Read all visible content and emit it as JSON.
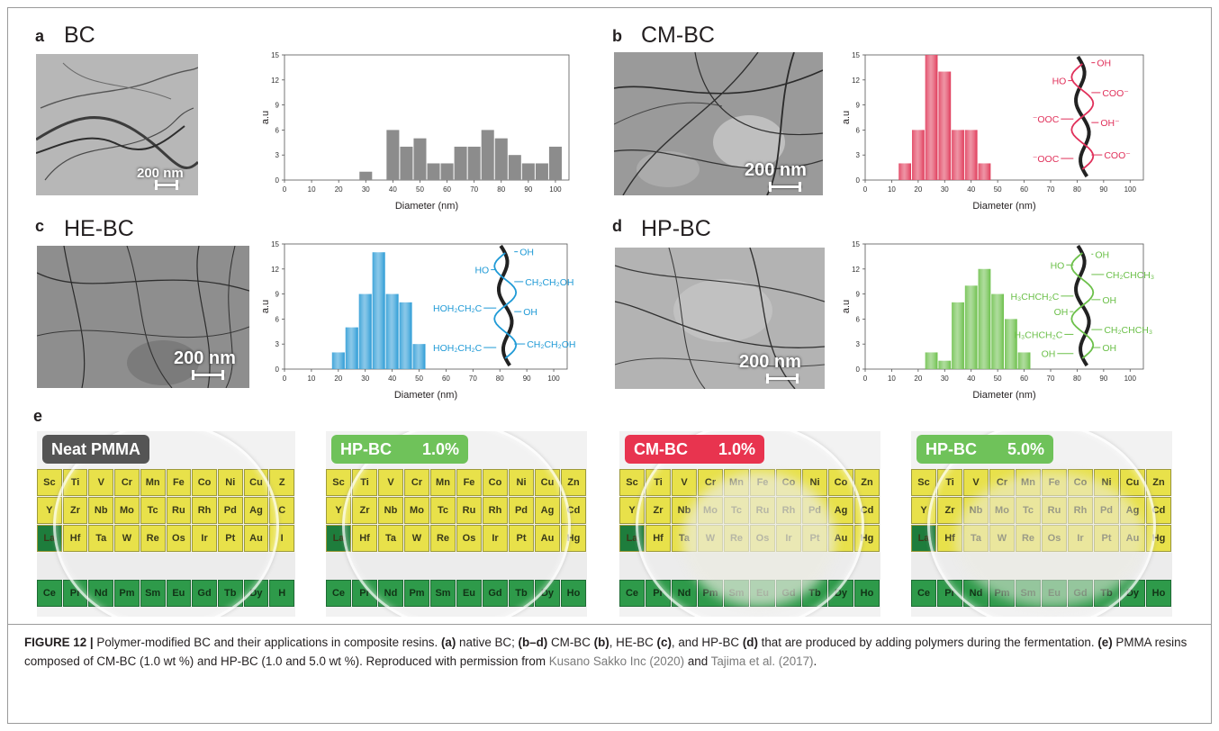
{
  "panels": {
    "a": {
      "letter": "a",
      "title": "BC",
      "scale": "200 nm"
    },
    "b": {
      "letter": "b",
      "title": "CM-BC",
      "scale": "200 nm"
    },
    "c": {
      "letter": "c",
      "title": "HE-BC",
      "scale": "200 nm"
    },
    "d": {
      "letter": "d",
      "title": "HP-BC",
      "scale": "200 nm"
    },
    "e": {
      "letter": "e"
    }
  },
  "chart_data": [
    {
      "type": "bar",
      "panel": "a",
      "xlabel": "Diameter (nm)",
      "ylabel": "a.u",
      "xlim": [
        0,
        105
      ],
      "ylim": [
        0,
        15
      ],
      "xticks": [
        0,
        10,
        20,
        30,
        40,
        50,
        60,
        70,
        80,
        90,
        100
      ],
      "yticks": [
        0,
        3,
        6,
        9,
        12,
        15
      ],
      "bins": [
        30,
        40,
        45,
        50,
        55,
        60,
        65,
        70,
        75,
        80,
        85,
        90,
        95,
        100
      ],
      "values": [
        1,
        6,
        4,
        5,
        2,
        2,
        4,
        4,
        6,
        5,
        3,
        2,
        2,
        4
      ],
      "color": "#8c8c8c"
    },
    {
      "type": "bar",
      "panel": "b",
      "xlabel": "Diameter (nm)",
      "ylabel": "a.u",
      "xlim": [
        0,
        105
      ],
      "ylim": [
        0,
        15
      ],
      "xticks": [
        0,
        10,
        20,
        30,
        40,
        50,
        60,
        70,
        80,
        90,
        100
      ],
      "yticks": [
        0,
        3,
        6,
        9,
        12,
        15
      ],
      "bins": [
        15,
        20,
        25,
        30,
        35,
        40,
        45
      ],
      "values": [
        2,
        6,
        15,
        13,
        6,
        6,
        2
      ],
      "color": "#e03a5a",
      "structure": {
        "labels": [
          "OH",
          "HO",
          "COO⁻",
          "⁻OOC",
          "OH⁻",
          "⁻OOC",
          "COO⁻"
        ],
        "color": "#e0305a"
      }
    },
    {
      "type": "bar",
      "panel": "c",
      "xlabel": "Diameter (nm)",
      "ylabel": "a.u",
      "xlim": [
        0,
        105
      ],
      "ylim": [
        0,
        15
      ],
      "xticks": [
        0,
        10,
        20,
        30,
        40,
        50,
        60,
        70,
        80,
        90,
        100
      ],
      "yticks": [
        0,
        3,
        6,
        9,
        12,
        15
      ],
      "bins": [
        20,
        25,
        30,
        35,
        40,
        45,
        50
      ],
      "values": [
        2,
        5,
        9,
        14,
        9,
        8,
        3
      ],
      "color": "#2a9ad6",
      "structure": {
        "labels": [
          "OH",
          "HO",
          "CH₂CH₂OH",
          "HOH₂CH₂C",
          "OH",
          "HOH₂CH₂C",
          "CH₂CH₂OH"
        ],
        "color": "#1f9ad6"
      }
    },
    {
      "type": "bar",
      "panel": "d",
      "xlabel": "Diameter (nm)",
      "ylabel": "a.u",
      "xlim": [
        0,
        105
      ],
      "ylim": [
        0,
        15
      ],
      "xticks": [
        0,
        10,
        20,
        30,
        40,
        50,
        60,
        70,
        80,
        90,
        100
      ],
      "yticks": [
        0,
        3,
        6,
        9,
        12,
        15
      ],
      "bins": [
        25,
        30,
        35,
        40,
        45,
        50,
        55,
        60
      ],
      "values": [
        2,
        1,
        8,
        10,
        12,
        9,
        6,
        2
      ],
      "color": "#6cc04a",
      "structure": {
        "labels": [
          "OH",
          "HO",
          "CH₂CHCH₃",
          "H₃CHCH₂C",
          "OH",
          "OH",
          "H₃CHCH₂C",
          "CH₂CHCH₃",
          "OH",
          "OH"
        ],
        "color": "#6cc04a"
      }
    }
  ],
  "photos": [
    {
      "badge": "Neat PMMA",
      "badge_value": "",
      "badge_color": "#555555",
      "rows": [
        [
          "Sc",
          "Ti",
          "V",
          "Cr",
          "Mn",
          "Fe",
          "Co",
          "Ni",
          "Cu",
          "Z"
        ],
        [
          "Y",
          "Zr",
          "Nb",
          "Mo",
          "Tc",
          "Ru",
          "Rh",
          "Pd",
          "Ag",
          "C"
        ],
        [
          "La",
          "Hf",
          "Ta",
          "W",
          "Re",
          "Os",
          "Ir",
          "Pt",
          "Au",
          "I"
        ],
        [
          "Ce",
          "Pr",
          "Nd",
          "Pm",
          "Sm",
          "Eu",
          "Gd",
          "Tb",
          "Dy",
          "H"
        ]
      ]
    },
    {
      "badge": "HP-BC",
      "badge_value": "1.0%",
      "badge_color": "#6fc25a",
      "rows": [
        [
          "Sc",
          "Ti",
          "V",
          "Cr",
          "Mn",
          "Fe",
          "Co",
          "Ni",
          "Cu",
          "Zn"
        ],
        [
          "Y",
          "Zr",
          "Nb",
          "Mo",
          "Tc",
          "Ru",
          "Rh",
          "Pd",
          "Ag",
          "Cd"
        ],
        [
          "La",
          "Hf",
          "Ta",
          "W",
          "Re",
          "Os",
          "Ir",
          "Pt",
          "Au",
          "Hg"
        ],
        [
          "Ce",
          "Pr",
          "Nd",
          "Pm",
          "Sm",
          "Eu",
          "Gd",
          "Tb",
          "Dy",
          "Ho"
        ]
      ]
    },
    {
      "badge": "CM-BC",
      "badge_value": "1.0%",
      "badge_color": "#e8344f",
      "rows": [
        [
          "Sc",
          "Ti",
          "V",
          "Cr",
          "Mn",
          "Fe",
          "Co",
          "Ni",
          "Co",
          "Zn"
        ],
        [
          "Y",
          "Zr",
          "Nb",
          "Mo",
          "Tc",
          "Ru",
          "Rh",
          "Pd",
          "Ag",
          "Cd"
        ],
        [
          "La",
          "Hf",
          "Ta",
          "W",
          "Re",
          "Os",
          "Ir",
          "Pt",
          "Au",
          "Hg"
        ],
        [
          "Ce",
          "Pr",
          "Nd",
          "Pm",
          "Sm",
          "Eu",
          "Gd",
          "Tb",
          "Dy",
          "Ho"
        ]
      ]
    },
    {
      "badge": "HP-BC",
      "badge_value": "5.0%",
      "badge_color": "#6fc25a",
      "rows": [
        [
          "Sc",
          "Ti",
          "V",
          "Cr",
          "Mn",
          "Fe",
          "Co",
          "Ni",
          "Cu",
          "Zn"
        ],
        [
          "Y",
          "Zr",
          "Nb",
          "Mo",
          "Tc",
          "Ru",
          "Rh",
          "Pd",
          "Ag",
          "Cd"
        ],
        [
          "La",
          "Hf",
          "Ta",
          "W",
          "Re",
          "Os",
          "Ir",
          "Pt",
          "Au",
          "Hg"
        ],
        [
          "Ce",
          "Pr",
          "Nd",
          "Pm",
          "Sm",
          "Eu",
          "Gd",
          "Tb",
          "Dy",
          "Ho"
        ]
      ]
    }
  ],
  "caption": {
    "label": "FIGURE 12 |",
    "text1": " Polymer-modified BC and their applications in composite resins. ",
    "a": "(a)",
    "text2": " native BC; ",
    "bd": "(b–d)",
    "text3": " CM-BC ",
    "b": "(b)",
    "text4": ", HE-BC ",
    "c": "(c)",
    "text5": ", and HP-BC ",
    "d": "(d)",
    "text6": " that are produced by adding polymers during the fermentation. ",
    "e": "(e)",
    "text7": " PMMA resins composed of CM-BC (1.0 wt %) and HP-BC (1.0 and 5.0 wt %). Reproduced with permission from ",
    "ref1": "Kusano Sakko Inc (2020)",
    "text8": " and ",
    "ref2": "Tajima et al. (2017)",
    "text9": "."
  }
}
